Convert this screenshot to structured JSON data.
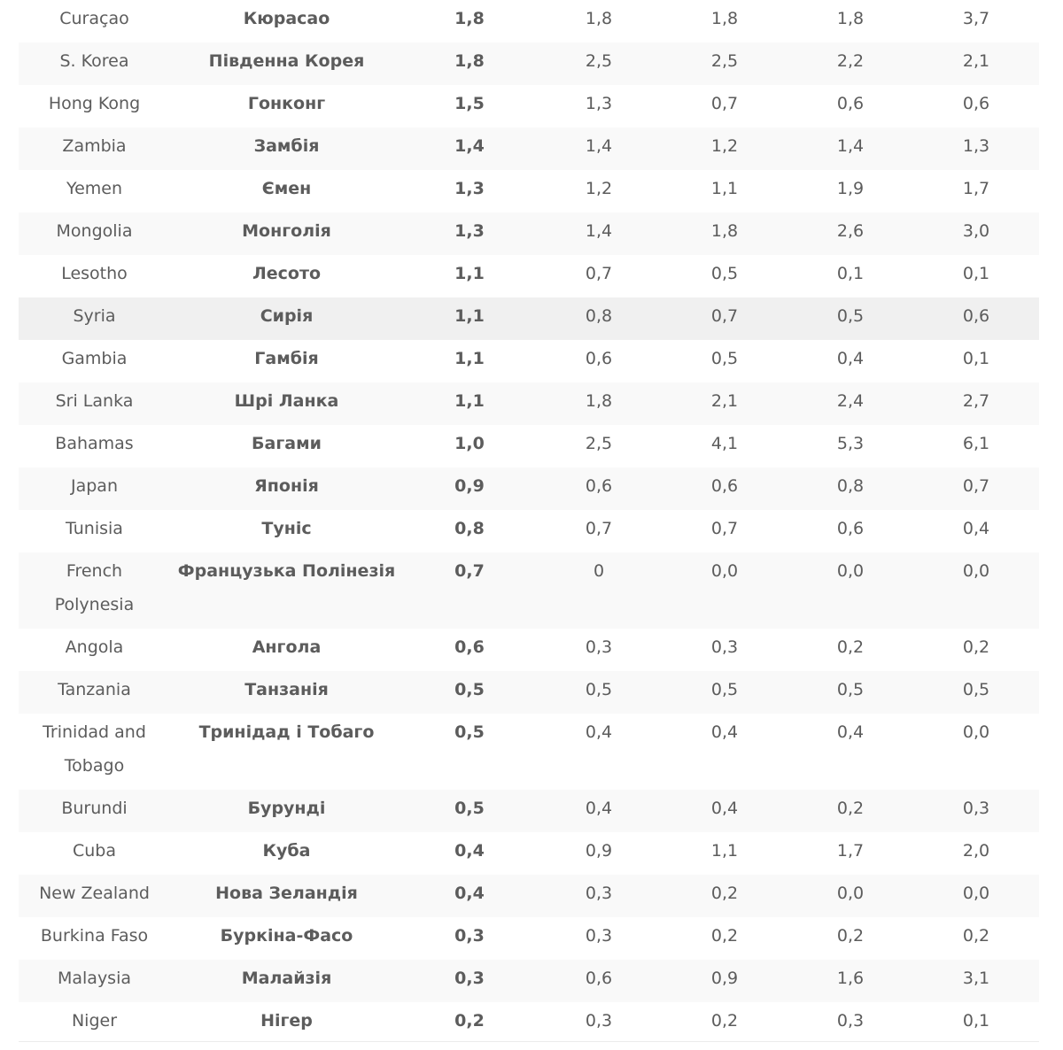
{
  "table": {
    "rows": [
      {
        "en": "Curaçao",
        "ua": "Кюрасао",
        "v1": "1,8",
        "v2": "1,8",
        "v3": "1,8",
        "v4": "1,8",
        "v5": "3,7"
      },
      {
        "en": "S. Korea",
        "ua": "Південна Корея",
        "v1": "1,8",
        "v2": "2,5",
        "v3": "2,5",
        "v4": "2,2",
        "v5": "2,1"
      },
      {
        "en": "Hong Kong",
        "ua": "Гонконг",
        "v1": "1,5",
        "v2": "1,3",
        "v3": "0,7",
        "v4": "0,6",
        "v5": "0,6"
      },
      {
        "en": "Zambia",
        "ua": "Замбія",
        "v1": "1,4",
        "v2": "1,4",
        "v3": "1,2",
        "v4": "1,4",
        "v5": "1,3"
      },
      {
        "en": "Yemen",
        "ua": "Ємен",
        "v1": "1,3",
        "v2": "1,2",
        "v3": "1,1",
        "v4": "1,9",
        "v5": "1,7"
      },
      {
        "en": "Mongolia",
        "ua": "Монголія",
        "v1": "1,3",
        "v2": "1,4",
        "v3": "1,8",
        "v4": "2,6",
        "v5": "3,0"
      },
      {
        "en": "Lesotho",
        "ua": "Лесото",
        "v1": "1,1",
        "v2": "0,7",
        "v3": "0,5",
        "v4": "0,1",
        "v5": "0,1"
      },
      {
        "en": "Syria",
        "ua": "Сирія",
        "v1": "1,1",
        "v2": "0,8",
        "v3": "0,7",
        "v4": "0,5",
        "v5": "0,6"
      },
      {
        "en": "Gambia",
        "ua": "Гамбія",
        "v1": "1,1",
        "v2": "0,6",
        "v3": "0,5",
        "v4": "0,4",
        "v5": "0,1"
      },
      {
        "en": "Sri Lanka",
        "ua": "Шрі Ланка",
        "v1": "1,1",
        "v2": "1,8",
        "v3": "2,1",
        "v4": "2,4",
        "v5": "2,7"
      },
      {
        "en": "Bahamas",
        "ua": "Багами",
        "v1": "1,0",
        "v2": "2,5",
        "v3": "4,1",
        "v4": "5,3",
        "v5": "6,1"
      },
      {
        "en": "Japan",
        "ua": "Японія",
        "v1": "0,9",
        "v2": "0,6",
        "v3": "0,6",
        "v4": "0,8",
        "v5": "0,7"
      },
      {
        "en": "Tunisia",
        "ua": "Туніс",
        "v1": "0,8",
        "v2": "0,7",
        "v3": "0,7",
        "v4": "0,6",
        "v5": "0,4"
      },
      {
        "en_line1": "French",
        "en_line2": "Polynesia",
        "ua": "Французька Полінезія",
        "v1": "0,7",
        "v2": "0",
        "v3": "0,0",
        "v4": "0,0",
        "v5": "0,0"
      },
      {
        "en": "Angola",
        "ua": "Ангола",
        "v1": "0,6",
        "v2": "0,3",
        "v3": "0,3",
        "v4": "0,2",
        "v5": "0,2"
      },
      {
        "en": "Tanzania",
        "ua": "Танзанія",
        "v1": "0,5",
        "v2": "0,5",
        "v3": "0,5",
        "v4": "0,5",
        "v5": "0,5"
      },
      {
        "en_line1": "Trinidad and",
        "en_line2": "Tobago",
        "ua": "Тринідад і Тобаго",
        "v1": "0,5",
        "v2": "0,4",
        "v3": "0,4",
        "v4": "0,4",
        "v5": "0,0"
      },
      {
        "en": "Burundi",
        "ua": "Бурунді",
        "v1": "0,5",
        "v2": "0,4",
        "v3": "0,4",
        "v4": "0,2",
        "v5": "0,3"
      },
      {
        "en": "Cuba",
        "ua": "Куба",
        "v1": "0,4",
        "v2": "0,9",
        "v3": "1,1",
        "v4": "1,7",
        "v5": "2,0"
      },
      {
        "en": "New Zealand",
        "ua": "Нова Зеландія",
        "v1": "0,4",
        "v2": "0,3",
        "v3": "0,2",
        "v4": "0,0",
        "v5": "0,0"
      },
      {
        "en": "Burkina Faso",
        "ua": "Буркіна-Фасо",
        "v1": "0,3",
        "v2": "0,3",
        "v3": "0,2",
        "v4": "0,2",
        "v5": "0,2"
      },
      {
        "en": "Malaysia",
        "ua": "Малайзія",
        "v1": "0,3",
        "v2": "0,6",
        "v3": "0,9",
        "v4": "1,6",
        "v5": "3,1"
      },
      {
        "en": "Niger",
        "ua": "Нігер",
        "v1": "0,2",
        "v2": "0,3",
        "v3": "0,2",
        "v4": "0,3",
        "v5": "0,1"
      }
    ]
  },
  "colors": {
    "country_ua": "#1f8a1f",
    "row_stripe": "#f9f9f9",
    "row_highlight": "#f0f0f0"
  }
}
